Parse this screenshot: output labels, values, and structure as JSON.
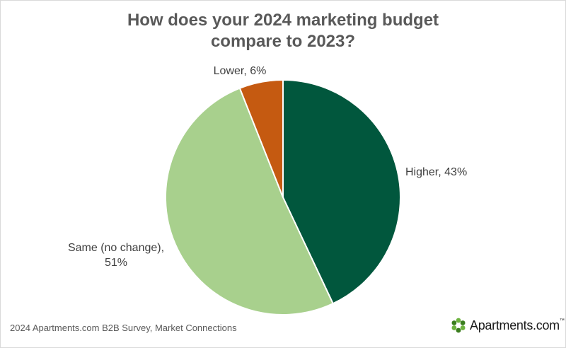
{
  "chart_data": {
    "type": "pie",
    "title_lines": [
      "How does your 2024 marketing budget",
      "compare to 2023?"
    ],
    "slices": [
      {
        "label": "Higher",
        "value": 43,
        "display": "Higher, 43%",
        "color": "#01573d"
      },
      {
        "label": "Same (no change)",
        "value": 51,
        "display_lines": [
          "Same (no change),",
          "51%"
        ],
        "color": "#a8d08d"
      },
      {
        "label": "Lower",
        "value": 6,
        "display": "Lower, 6%",
        "color": "#c55a11"
      }
    ],
    "start": "12 o'clock, clockwise"
  },
  "source": "2024 Apartments.com B2B Survey, Market Connections",
  "logo": {
    "text": "Apartments.com",
    "tm": "™",
    "icon": "apartments-logo-icon",
    "colors": [
      "#6db33f",
      "#3a7d1e"
    ]
  }
}
